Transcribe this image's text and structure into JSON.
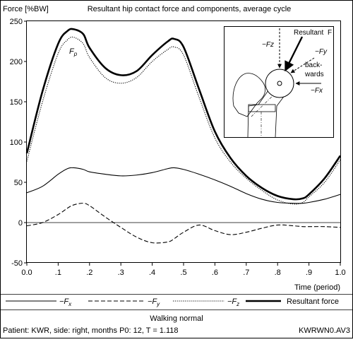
{
  "chart_data": {
    "type": "line",
    "title": "Resultant hip contact force and components, average cycle",
    "ylabel": "Force [%BW]",
    "xlabel": "Time (period)",
    "xlim": [
      0,
      1.0
    ],
    "ylim": [
      -50,
      250
    ],
    "xticks": [
      0.0,
      0.1,
      0.2,
      0.3,
      0.4,
      0.5,
      0.6,
      0.7,
      0.8,
      0.9,
      1.0
    ],
    "xtick_labels": [
      "0.0",
      ".1",
      ".2",
      ".3",
      ".4",
      ".5",
      ".6",
      ".7",
      ".8",
      ".9",
      "1.0"
    ],
    "yticks": [
      -50,
      0,
      50,
      100,
      150,
      200,
      250
    ],
    "zero_line": true,
    "peak_annotation": "Fp",
    "x": [
      0.0,
      0.05,
      0.1,
      0.13,
      0.15,
      0.18,
      0.2,
      0.25,
      0.3,
      0.35,
      0.4,
      0.45,
      0.47,
      0.5,
      0.55,
      0.6,
      0.65,
      0.7,
      0.75,
      0.8,
      0.85,
      0.88,
      0.9,
      0.95,
      1.0
    ],
    "series": [
      {
        "name": "−Fx",
        "style": "solid-thin",
        "values": [
          37,
          45,
          60,
          67,
          68,
          66,
          63,
          60,
          58,
          59,
          62,
          67,
          68,
          66,
          60,
          53,
          45,
          36,
          29,
          25,
          24,
          24,
          25,
          29,
          35
        ]
      },
      {
        "name": "−Fy",
        "style": "dashed",
        "values": [
          -4,
          0,
          10,
          18,
          22,
          24,
          21,
          7,
          -6,
          -18,
          -25,
          -24,
          -20,
          -12,
          -3,
          -10,
          -15,
          -12,
          -7,
          -3,
          -4,
          -5,
          -5,
          -5,
          -6
        ]
      },
      {
        "name": "−Fz",
        "style": "dotted",
        "values": [
          76,
          150,
          210,
          227,
          230,
          222,
          205,
          180,
          173,
          180,
          200,
          215,
          218,
          208,
          155,
          105,
          75,
          55,
          40,
          28,
          23,
          25,
          32,
          50,
          78
        ]
      },
      {
        "name": "Resultant force",
        "style": "solid-thick",
        "values": [
          86,
          163,
          222,
          238,
          240,
          234,
          217,
          192,
          183,
          188,
          208,
          225,
          228,
          218,
          165,
          113,
          80,
          58,
          43,
          33,
          29,
          30,
          35,
          55,
          83
        ]
      }
    ]
  },
  "inset": {
    "resultant_label": "Resultant",
    "f_label": "F",
    "fz_label": "−Fz",
    "fy_label": "−Fy",
    "backwards_line1": "back-",
    "backwards_line2": "wards",
    "fx_label": "−Fx"
  },
  "footer": {
    "activity": "Walking normal",
    "patient": "Patient: KWR, side: right, months P0: 12, T = 1.118",
    "file_code": "KWRWN0.AV3"
  }
}
